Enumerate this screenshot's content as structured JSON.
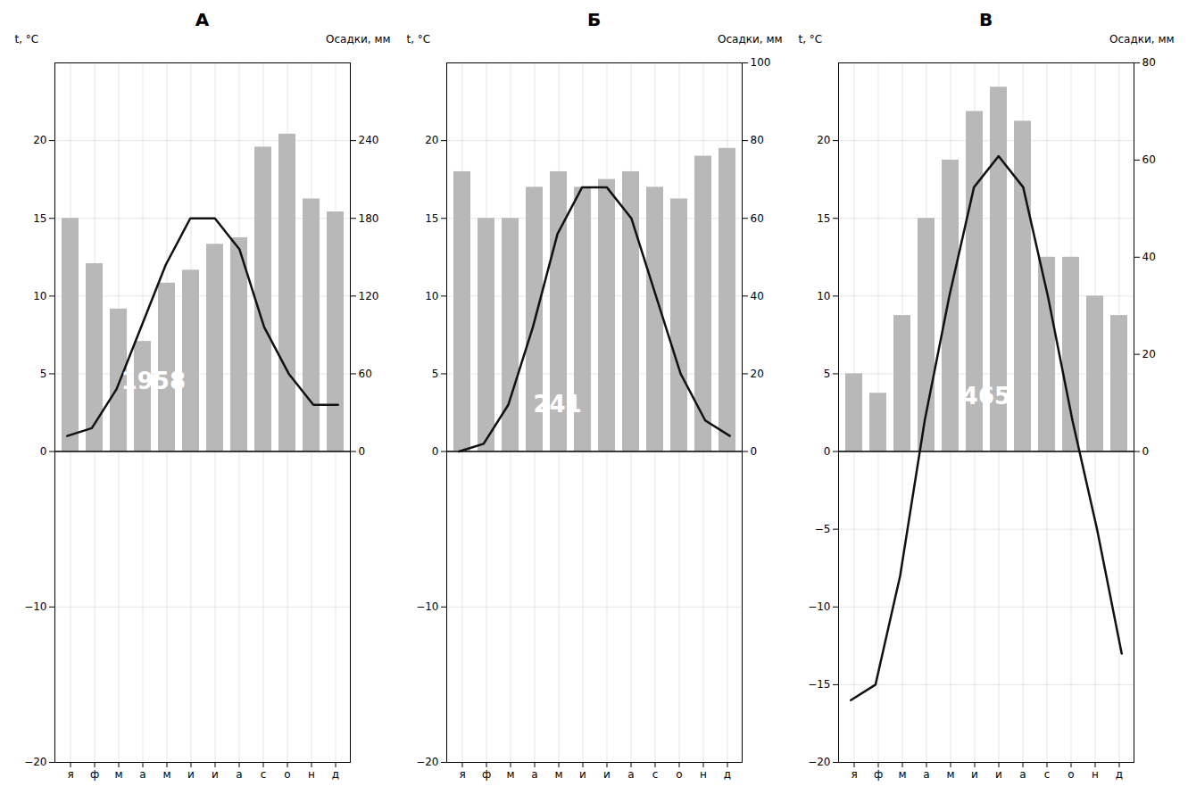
{
  "chart_data": [
    {
      "type": "bar",
      "title": "А",
      "categories": [
        "я",
        "ф",
        "м",
        "а",
        "м",
        "и",
        "и",
        "а",
        "с",
        "о",
        "н",
        "д"
      ],
      "series": [
        {
          "type": "bar",
          "axis": "y2",
          "color": "#b8b8b8",
          "values": [
            180,
            145,
            110,
            85,
            130,
            140,
            160,
            165,
            235,
            245,
            195,
            185
          ]
        },
        {
          "type": "line",
          "color": "#111111",
          "values": [
            1,
            1.5,
            4,
            8,
            12,
            15,
            15,
            13,
            8,
            5,
            3,
            3
          ]
        }
      ],
      "ylabel": "t, °С",
      "y2label": "Осадки, мм",
      "ylim": [
        -20,
        25
      ],
      "yticks": [
        -20,
        -10,
        0,
        5,
        10,
        15,
        20
      ],
      "y2lim": [
        -240,
        300
      ],
      "y2ticks": [
        0,
        60,
        120,
        180,
        240
      ],
      "grid": true,
      "annotations": [
        {
          "text": "1958",
          "x": 3.5,
          "y": 4.5
        }
      ]
    },
    {
      "type": "bar",
      "title": "Б",
      "categories": [
        "я",
        "ф",
        "м",
        "а",
        "м",
        "и",
        "и",
        "а",
        "с",
        "о",
        "н",
        "д"
      ],
      "series": [
        {
          "type": "bar",
          "axis": "y2",
          "color": "#b8b8b8",
          "values": [
            72,
            60,
            60,
            68,
            72,
            68,
            70,
            72,
            68,
            65,
            76,
            78
          ]
        },
        {
          "type": "line",
          "color": "#111111",
          "values": [
            0,
            0.5,
            3,
            8,
            14,
            17,
            17,
            15,
            10,
            5,
            2,
            1
          ]
        }
      ],
      "ylabel": "t, °С",
      "y2label": "Осадки, мм",
      "ylim": [
        -20,
        25
      ],
      "yticks": [
        -20,
        -10,
        0,
        5,
        10,
        15,
        20
      ],
      "y2lim": [
        -80,
        100
      ],
      "y2ticks": [
        0,
        20,
        40,
        60,
        80,
        100
      ],
      "grid": true,
      "annotations": [
        {
          "text": "241",
          "x": 4.0,
          "y": 3.0
        }
      ]
    },
    {
      "type": "bar",
      "title": "В",
      "categories": [
        "я",
        "ф",
        "м",
        "а",
        "м",
        "и",
        "и",
        "а",
        "с",
        "о",
        "н",
        "д"
      ],
      "series": [
        {
          "type": "bar",
          "axis": "y2",
          "color": "#b8b8b8",
          "values": [
            16,
            12,
            28,
            48,
            60,
            70,
            75,
            68,
            40,
            40,
            32,
            28
          ]
        },
        {
          "type": "line",
          "color": "#111111",
          "values": [
            -16,
            -15,
            -8,
            2,
            10,
            17,
            19,
            17,
            10,
            2,
            -5,
            -13
          ]
        }
      ],
      "ylabel": "t, °С",
      "y2label": "Осадки, мм",
      "ylim": [
        -20,
        25
      ],
      "yticks": [
        -20,
        -15,
        -10,
        -5,
        0,
        5,
        10,
        15,
        20
      ],
      "y2lim": [
        -64,
        80
      ],
      "y2ticks": [
        0,
        20,
        40,
        60,
        80
      ],
      "grid": true,
      "annotations": [
        {
          "text": "465",
          "x": 5.5,
          "y": 3.5
        }
      ]
    }
  ]
}
